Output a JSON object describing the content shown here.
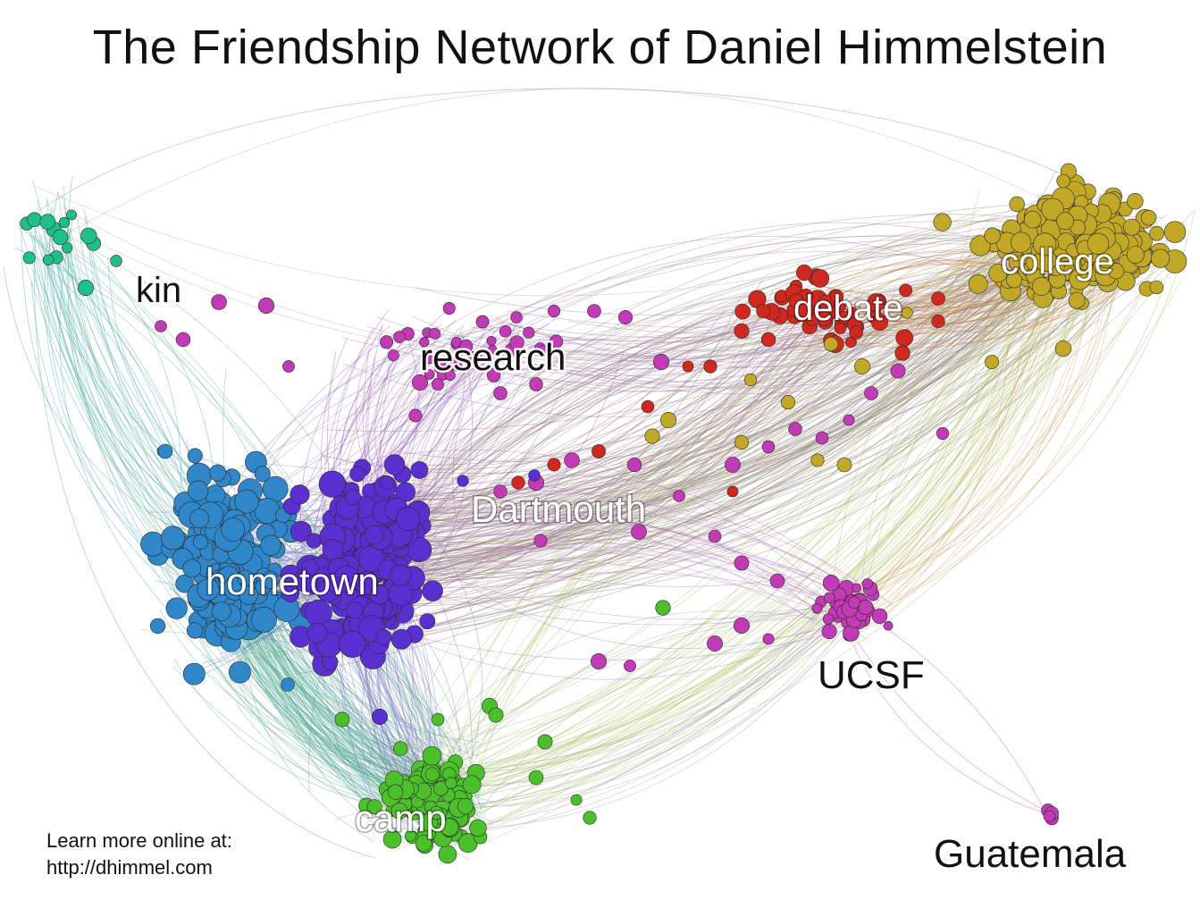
{
  "title": "The Friendship Network of Daniel Himmelstein",
  "footer": {
    "line1": "Learn more online at:",
    "line2": "http://dhimmel.com"
  },
  "clusters": {
    "kin": {
      "label": "kin",
      "color": "#1fbf8a"
    },
    "research": {
      "label": "research",
      "color": "#c23ab5"
    },
    "debate": {
      "label": "debate",
      "color": "#d0271f"
    },
    "college": {
      "label": "college",
      "color": "#c2a827"
    },
    "dartmouth": {
      "label": "Dartmouth",
      "color": "#5a2fd0"
    },
    "hometown": {
      "label": "hometown",
      "color": "#2f86c8"
    },
    "ucsf": {
      "label": "UCSF",
      "color": "#c23ab5"
    },
    "camp": {
      "label": "camp",
      "color": "#4cc02a"
    },
    "guatemala": {
      "label": "Guatemala",
      "color": "#c23ab5"
    }
  }
}
